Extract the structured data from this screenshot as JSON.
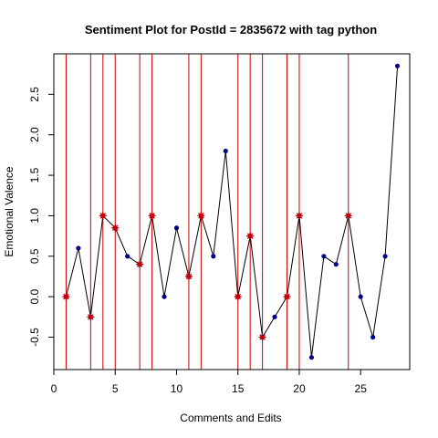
{
  "chart_data": {
    "type": "line",
    "title": "Sentiment Plot for PostId =  2835672  with tag  python",
    "xlabel": "Comments and Edits",
    "ylabel": "Emotional Valence",
    "xlim": [
      0,
      29
    ],
    "ylim": [
      -0.9,
      3.0
    ],
    "x_ticks": [
      0,
      5,
      10,
      15,
      20,
      25
    ],
    "y_ticks": [
      -0.5,
      0.0,
      0.5,
      1.0,
      1.5,
      2.0,
      2.5
    ],
    "y_tick_labels": [
      "-0.5",
      "0.0",
      "0.5",
      "1.0",
      "1.5",
      "2.0",
      "2.5"
    ],
    "grid": false,
    "series": [
      {
        "x": [
          1,
          2,
          3,
          4,
          5,
          6,
          7,
          8,
          9,
          10,
          11,
          12,
          13,
          14,
          15,
          16,
          17,
          18,
          19,
          20,
          21,
          22,
          23,
          24,
          25,
          26,
          27,
          28
        ],
        "values": [
          0.0,
          0.6,
          -0.25,
          1.0,
          0.85,
          0.5,
          0.4,
          1.0,
          0.0,
          0.85,
          0.25,
          1.0,
          0.5,
          1.8,
          0.0,
          0.75,
          -0.5,
          -0.25,
          0.0,
          1.0,
          -0.75,
          0.5,
          0.4,
          1.0,
          0.0,
          -0.5,
          0.5,
          2.85
        ],
        "line_color": "#000000",
        "point_color": "#00008b"
      }
    ],
    "highlighted_x": [
      1,
      3,
      4,
      5,
      7,
      8,
      11,
      12,
      15,
      16,
      17,
      19,
      20,
      24
    ],
    "vline_color": "#cc0000",
    "highlight_marker_color": "#cc0000"
  }
}
